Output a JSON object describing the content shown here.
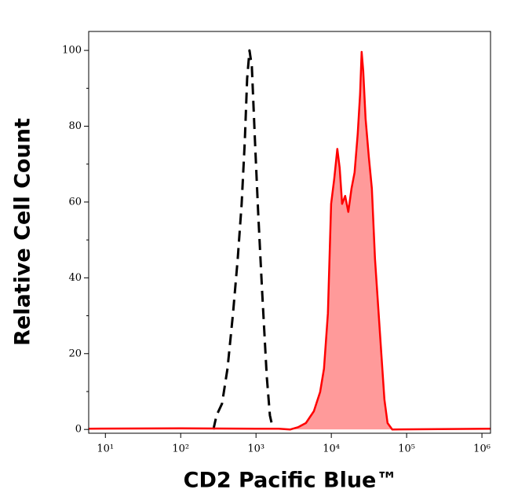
{
  "chart_data": {
    "type": "line",
    "xlabel": "CD2 Pacific Blue™",
    "ylabel": "Relative Cell Count",
    "xscale": "log",
    "xlim": [
      6,
      1300000
    ],
    "xticks": [
      {
        "value": 10,
        "label": "10¹"
      },
      {
        "value": 100,
        "label": "10²"
      },
      {
        "value": 1000,
        "label": "10³"
      },
      {
        "value": 10000,
        "label": "10⁴"
      },
      {
        "value": 100000,
        "label": "10⁵"
      },
      {
        "value": 1000000,
        "label": "10⁶"
      }
    ],
    "ylim": [
      -1,
      105
    ],
    "yticks": [
      0,
      20,
      40,
      60,
      80,
      100
    ],
    "yminorticks": [
      10,
      30,
      50,
      70,
      90
    ],
    "series": [
      {
        "color": "#000000",
        "dashed": true,
        "filled": false,
        "x": [
          272,
          299,
          354,
          419,
          495,
          572,
          645,
          710,
          763,
          819,
          881,
          969,
          1067,
          1203,
          1389,
          1528,
          1683
        ],
        "values": [
          0,
          3.7,
          6.8,
          16.1,
          30.6,
          45,
          59.5,
          76,
          92.6,
          100,
          95.7,
          76,
          57.4,
          36.8,
          14,
          3.7,
          0
        ]
      },
      {
        "color": "#ff0000",
        "fill": "#ff9a9a",
        "dashed": false,
        "filled": true,
        "x": [
          6,
          100,
          1000,
          2000,
          2851,
          3622,
          4603,
          5861,
          7096,
          7998,
          9016,
          9931,
          10914,
          12023,
          12912,
          13900,
          15280,
          16830,
          18530,
          20370,
          22440,
          24100,
          25290,
          26550,
          28510,
          31410,
          34510,
          38020,
          41880,
          46030,
          50700,
          55850,
          64420,
          1300000
        ],
        "values": [
          0.2,
          0.3,
          0.2,
          0.2,
          0,
          0.6,
          1.7,
          4.8,
          9.9,
          16,
          30.6,
          59.5,
          66,
          74,
          69,
          59.5,
          61.6,
          57.4,
          63.6,
          67.8,
          78,
          88.4,
          99.6,
          94.6,
          82,
          72,
          63.6,
          45,
          32.6,
          20.2,
          7.9,
          1.7,
          0,
          0.2
        ]
      }
    ]
  }
}
